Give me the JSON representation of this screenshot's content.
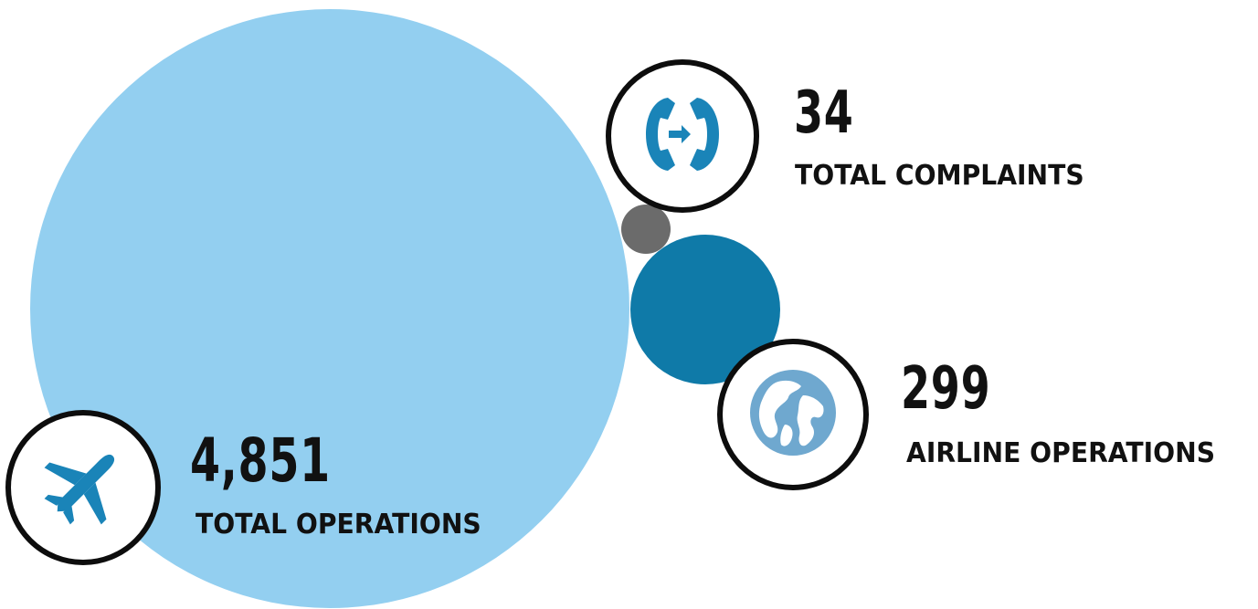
{
  "colors": {
    "total_operations_bubble": "#93cff0",
    "complaints_bubble": "#6b6b6b",
    "airline_operations_bubble": "#0f7aa8",
    "icon_blue": "#1a84b8",
    "icon_ring_border": "#0d0d0d"
  },
  "stats": {
    "total_operations": {
      "value": "4,851",
      "label": "TOTAL OPERATIONS",
      "icon": "airplane-icon"
    },
    "total_complaints": {
      "value": "34",
      "label": "TOTAL COMPLAINTS",
      "icon": "phone-transfer-icon"
    },
    "airline_operations": {
      "value": "299",
      "label": "AIRLINE OPERATIONS",
      "icon": "globe-icon"
    }
  }
}
